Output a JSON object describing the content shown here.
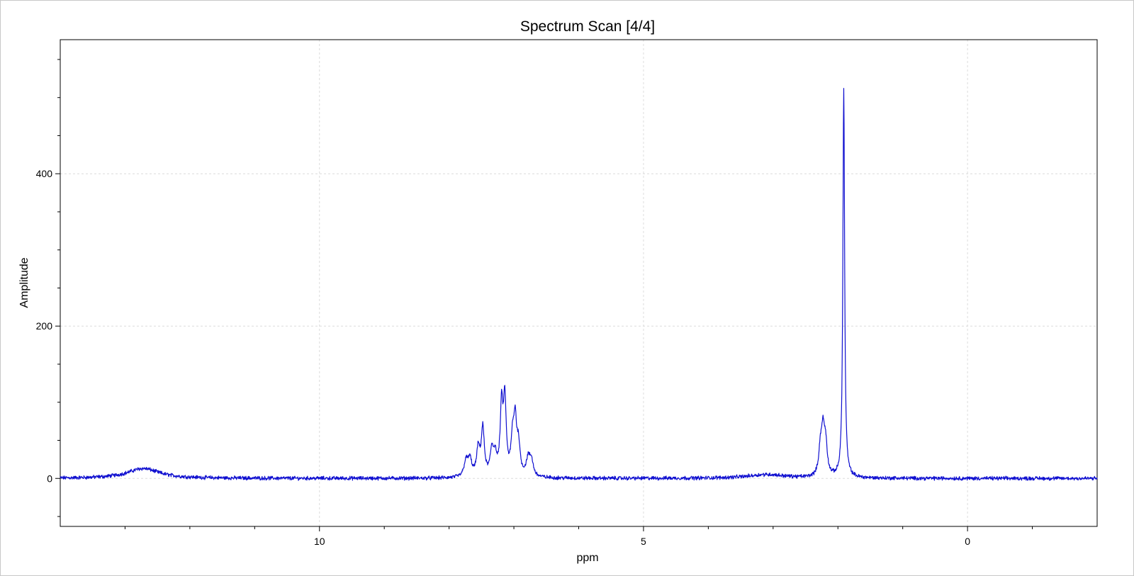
{
  "chart_data": {
    "type": "line",
    "title": "Spectrum Scan [4/4]",
    "xlabel": "ppm",
    "ylabel": "Amplitude",
    "xlim": [
      14.0,
      -2.0
    ],
    "ylim": [
      -63,
      576
    ],
    "x_reversed": true,
    "x_ticks": [
      10,
      5,
      0
    ],
    "x_minor_step": 1,
    "y_ticks": [
      0,
      200,
      400
    ],
    "y_minor_step": 50,
    "grid": true,
    "series_color": "#1010d0",
    "grid_color": "#dcdcdc",
    "peaks": [
      {
        "x": 12.72,
        "height": 13,
        "width": 0.3
      },
      {
        "x": 3.1,
        "height": 5,
        "width": 0.35
      },
      {
        "x": 7.74,
        "height": 20,
        "width": 0.035
      },
      {
        "x": 7.68,
        "height": 22,
        "width": 0.035
      },
      {
        "x": 7.55,
        "height": 35,
        "width": 0.03
      },
      {
        "x": 7.48,
        "height": 62,
        "width": 0.028
      },
      {
        "x": 7.34,
        "height": 32,
        "width": 0.03
      },
      {
        "x": 7.29,
        "height": 24,
        "width": 0.03
      },
      {
        "x": 7.19,
        "height": 88,
        "width": 0.025
      },
      {
        "x": 7.14,
        "height": 96,
        "width": 0.025
      },
      {
        "x": 7.02,
        "height": 46,
        "width": 0.028
      },
      {
        "x": 6.98,
        "height": 65,
        "width": 0.025
      },
      {
        "x": 6.93,
        "height": 40,
        "width": 0.03
      },
      {
        "x": 6.78,
        "height": 22,
        "width": 0.035
      },
      {
        "x": 6.73,
        "height": 20,
        "width": 0.035
      },
      {
        "x": 2.27,
        "height": 35,
        "width": 0.03
      },
      {
        "x": 2.23,
        "height": 52,
        "width": 0.028
      },
      {
        "x": 2.19,
        "height": 40,
        "width": 0.03
      },
      {
        "x": 1.91,
        "height": 510,
        "width": 0.016
      }
    ]
  }
}
